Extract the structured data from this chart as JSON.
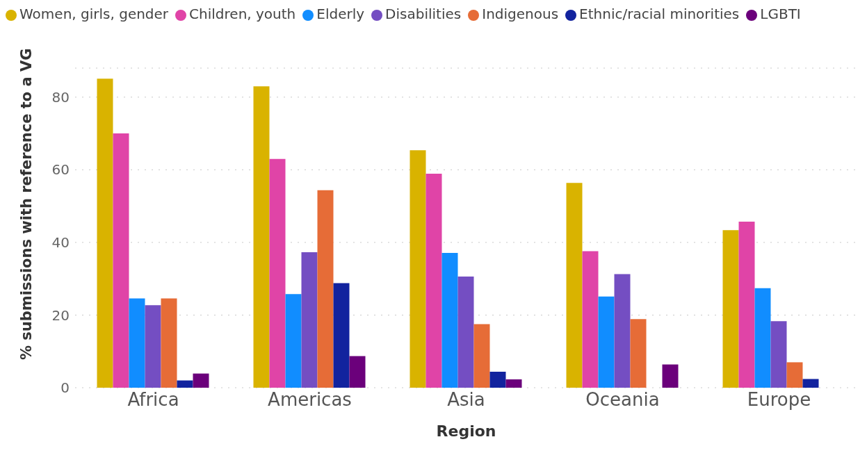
{
  "chart_data": {
    "type": "bar",
    "xlabel": "Region",
    "ylabel": "% submissions with reference to a VG",
    "categories": [
      "Africa",
      "Americas",
      "Asia",
      "Oceania",
      "Europe"
    ],
    "series": [
      {
        "name": "Women, girls, gender",
        "color": "#d9b300",
        "values": [
          85.1,
          83.0,
          65.4,
          56.4,
          43.4
        ]
      },
      {
        "name": "Children, youth",
        "color": "#e044a7",
        "values": [
          70.0,
          63.0,
          58.9,
          37.6,
          45.7
        ]
      },
      {
        "name": "Elderly",
        "color": "#118dff",
        "values": [
          24.6,
          25.8,
          37.1,
          25.1,
          27.4
        ]
      },
      {
        "name": "Disabilities",
        "color": "#744ec2",
        "values": [
          22.7,
          37.3,
          30.6,
          31.3,
          18.3
        ]
      },
      {
        "name": "Indigenous",
        "color": "#e66c37",
        "values": [
          24.6,
          54.4,
          17.5,
          18.9,
          7.0
        ]
      },
      {
        "name": "Ethnic/racial minorities",
        "color": "#12239e",
        "values": [
          2.0,
          28.8,
          4.4,
          0,
          2.4
        ]
      },
      {
        "name": "LGBTI",
        "color": "#6b007b",
        "values": [
          3.9,
          8.7,
          2.3,
          6.4,
          0
        ]
      }
    ],
    "ylim": [
      0,
      88
    ],
    "yticks": [
      0,
      20,
      40,
      60,
      80
    ],
    "grid": "y",
    "legend": "top left"
  }
}
